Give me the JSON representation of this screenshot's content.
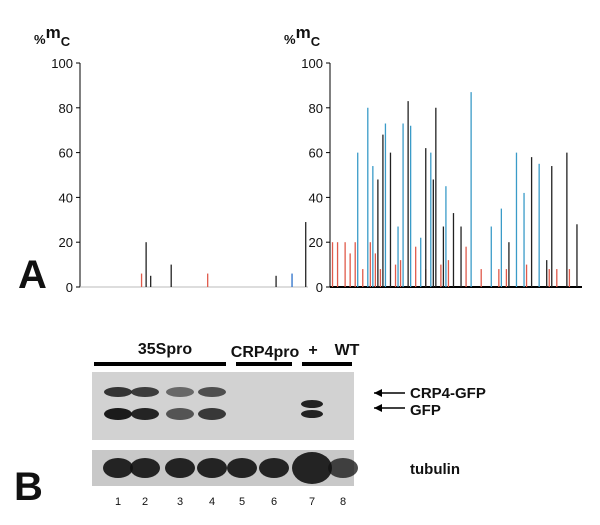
{
  "chart_data": [
    {
      "type": "stick",
      "ylabel": [
        "%",
        "m",
        "C"
      ],
      "xlim": [
        0,
        100
      ],
      "ylim": [
        0,
        100
      ],
      "yticks": [
        0,
        20,
        40,
        60,
        80,
        100
      ],
      "series": [
        {
          "color": "#e05a4a",
          "x": [
            27,
            56
          ],
          "values": [
            6,
            6
          ]
        },
        {
          "color": "#222222",
          "x": [
            29,
            31,
            40,
            86,
            99
          ],
          "values": [
            20,
            5,
            10,
            5,
            29
          ]
        },
        {
          "color": "#2a6fc9",
          "x": [
            93
          ],
          "values": [
            6
          ]
        }
      ]
    },
    {
      "type": "stick",
      "ylabel": [
        "%",
        "m",
        "C"
      ],
      "xlim": [
        0,
        100
      ],
      "ylim": [
        0,
        100
      ],
      "yticks": [
        0,
        20,
        40,
        60,
        80,
        100
      ],
      "series": [
        {
          "color": "#e05a4a",
          "x": [
            1,
            3,
            6,
            8,
            10,
            13,
            16,
            18,
            20,
            26,
            28,
            34,
            38,
            44,
            47,
            54,
            60,
            67,
            70,
            78,
            87,
            90,
            95
          ],
          "values": [
            20,
            20,
            20,
            15,
            20,
            8,
            20,
            15,
            8,
            10,
            12,
            18,
            8,
            10,
            12,
            18,
            8,
            8,
            8,
            10,
            8,
            8,
            8
          ]
        },
        {
          "color": "#222222",
          "x": [
            19,
            21,
            24,
            31,
            38,
            41,
            42,
            45,
            49,
            52,
            71,
            80,
            86,
            88,
            94,
            98
          ],
          "values": [
            48,
            68,
            60,
            83,
            62,
            48,
            80,
            27,
            33,
            27,
            20,
            58,
            12,
            54,
            60,
            28
          ]
        },
        {
          "color": "#3a9bc8",
          "x": [
            11,
            15,
            17,
            22,
            27,
            29,
            32,
            36,
            40,
            46,
            56,
            64,
            68,
            74,
            77,
            83
          ],
          "values": [
            60,
            80,
            54,
            73,
            27,
            73,
            72,
            22,
            60,
            45,
            87,
            27,
            35,
            60,
            42,
            55
          ]
        }
      ]
    }
  ],
  "panel_labels": [
    "A",
    "B"
  ],
  "blot": {
    "groups": [
      "35Spro",
      "CRP4pro",
      "+",
      "WT"
    ],
    "bands": [
      "CRP4-GFP",
      "GFP"
    ],
    "loading": "tubulin",
    "lanes": [
      1,
      2,
      3,
      4,
      5,
      6,
      7,
      8
    ]
  }
}
